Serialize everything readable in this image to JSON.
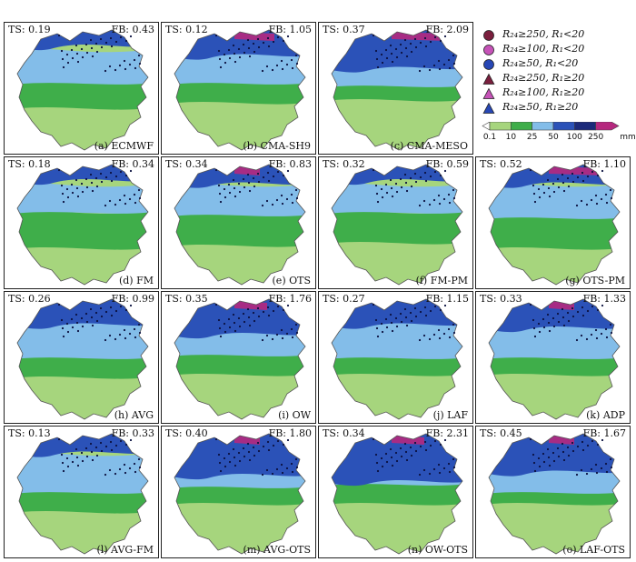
{
  "panels": [
    {
      "ts": "TS: 0.19",
      "fb": "FB: 0.43",
      "label": "(a) ECMWF",
      "mix": [
        0.55,
        0.2,
        0.25,
        0,
        0.05,
        0
      ]
    },
    {
      "ts": "TS: 0.12",
      "fb": "FB: 1.05",
      "label": "(b) CMA-SH9",
      "mix": [
        0.45,
        0.1,
        0.25,
        0.15,
        0.05,
        0.03
      ]
    },
    {
      "ts": "TS: 0.37",
      "fb": "FB: 2.09",
      "label": "(c) CMA-MESO",
      "mix": [
        0.2,
        0.05,
        0.3,
        0.35,
        0.05,
        0.05
      ]
    },
    {
      "ts": "TS: 0.18",
      "fb": "FB: 0.34",
      "label": "(d) FM",
      "mix": [
        0.5,
        0.3,
        0.15,
        0,
        0.05,
        0
      ]
    },
    {
      "ts": "TS: 0.34",
      "fb": "FB: 0.83",
      "label": "(e) OTS",
      "mix": [
        0.45,
        0.25,
        0.2,
        0.05,
        0.05,
        0.01
      ]
    },
    {
      "ts": "TS: 0.32",
      "fb": "FB: 0.59",
      "label": "(f) FM-PM",
      "mix": [
        0.6,
        0.2,
        0.15,
        0,
        0.05,
        0
      ]
    },
    {
      "ts": "TS: 0.52",
      "fb": "FB: 1.10",
      "label": "(g) OTS-PM",
      "mix": [
        0.35,
        0.3,
        0.25,
        0.05,
        0.05,
        0.05
      ]
    },
    {
      "ts": "TS: 0.26",
      "fb": "FB: 0.99",
      "label": "(h) AVG",
      "mix": [
        0.25,
        0.2,
        0.35,
        0.15,
        0.05,
        0
      ]
    },
    {
      "ts": "TS: 0.35",
      "fb": "FB: 1.76",
      "label": "(i) OW",
      "mix": [
        0.2,
        0.15,
        0.3,
        0.3,
        0.05,
        0.02
      ]
    },
    {
      "ts": "TS: 0.27",
      "fb": "FB: 1.15",
      "label": "(j) LAF",
      "mix": [
        0.3,
        0.15,
        0.35,
        0.15,
        0.05,
        0
      ]
    },
    {
      "ts": "TS: 0.33",
      "fb": "FB: 1.33",
      "label": "(k) ADP",
      "mix": [
        0.25,
        0.15,
        0.35,
        0.2,
        0.05,
        0.01
      ]
    },
    {
      "ts": "TS: 0.13",
      "fb": "FB: 0.33",
      "label": "(l) AVG-FM",
      "mix": [
        0.35,
        0.2,
        0.35,
        0.05,
        0.05,
        0
      ]
    },
    {
      "ts": "TS: 0.40",
      "fb": "FB: 1.80",
      "label": "(m) AVG-OTS",
      "mix": [
        0.25,
        0.05,
        0.25,
        0.4,
        0.05,
        0.01
      ]
    },
    {
      "ts": "TS: 0.34",
      "fb": "FB: 2.31",
      "label": "(n) OW-OTS",
      "mix": [
        0.2,
        0.05,
        0.2,
        0.5,
        0.05,
        0.02
      ]
    },
    {
      "ts": "TS: 0.45",
      "fb": "FB: 1.67",
      "label": "(o) LAF-OTS",
      "mix": [
        0.2,
        0.05,
        0.35,
        0.35,
        0.05,
        0.01
      ]
    }
  ],
  "legend": {
    "markers": [
      {
        "text": "R₂₄≥250, R₁<20",
        "shape": "circle",
        "color": "#7a1f3d"
      },
      {
        "text": "R₂₄≥100, R₁<20",
        "shape": "circle",
        "color": "#c653b8"
      },
      {
        "text": "R₂₄≥50, R₁<20",
        "shape": "circle",
        "color": "#2747b5"
      },
      {
        "text": "R₂₄≥250, R₁≥20",
        "shape": "triangle",
        "color": "#7a1f3d"
      },
      {
        "text": "R₂₄≥100, R₁≥20",
        "shape": "triangle",
        "color": "#c653b8"
      },
      {
        "text": "R₂₄≥50, R₁≥20",
        "shape": "triangle",
        "color": "#2747b5"
      }
    ],
    "colorbar": {
      "ticks": [
        "0.1",
        "10",
        "25",
        "50",
        "100",
        "250"
      ],
      "unit": "mm",
      "colors": [
        "#ffffff",
        "#a6d57d",
        "#3fae4a",
        "#83bde9",
        "#2b52b8",
        "#1c2a7a",
        "#b5287e"
      ]
    }
  }
}
